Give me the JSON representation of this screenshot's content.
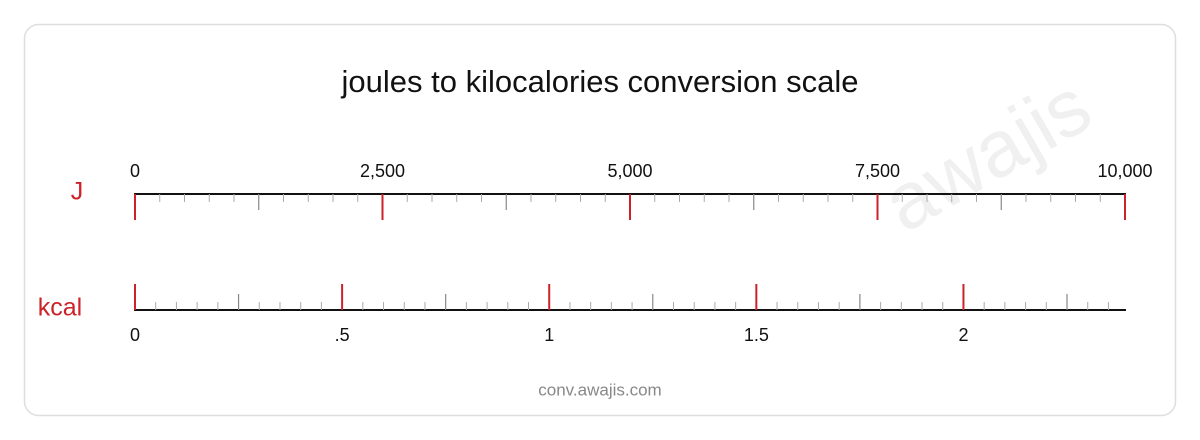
{
  "chart_data": {
    "type": "scale",
    "title": "joules to kilocalories conversion scale",
    "scales": [
      {
        "name": "J",
        "color": "#cc2229",
        "side": "top",
        "xlim": [
          0,
          10000
        ],
        "xticks": [
          0,
          {
            "value": 2500,
            "label": "2,500"
          },
          {
            "value": 5000,
            "label": "5,000"
          },
          {
            "value": 7500,
            "label": "7,500"
          },
          {
            "value": 10000,
            "label": "10,000"
          }
        ],
        "mid_ticks": [
          1250,
          3750,
          6250,
          8750
        ],
        "minor_ticks": [
          250,
          500,
          750,
          1000,
          1500,
          1750,
          2000,
          2250,
          2750,
          3000,
          3250,
          3500,
          4000,
          4250,
          4500,
          4750,
          5250,
          5500,
          5750,
          6000,
          6500,
          6750,
          7000,
          7250,
          7750,
          8000,
          8250,
          8500,
          9000,
          9250,
          9500,
          9750
        ]
      },
      {
        "name": "kcal",
        "color": "#cc2229",
        "side": "bottom",
        "xlim": [
          0,
          2.39
        ],
        "xticks": [
          0,
          {
            "value": 0.5,
            "label": ".5"
          },
          1,
          1.5,
          2
        ],
        "mid_ticks": [
          0.25,
          0.75,
          1.25,
          1.75,
          2.25
        ],
        "minor_ticks": [
          0.05,
          0.1,
          0.15,
          0.2,
          0.3,
          0.35,
          0.4,
          0.45,
          0.55,
          0.6,
          0.65,
          0.7,
          0.8,
          0.85,
          0.9,
          0.95,
          1.05,
          1.1,
          1.15,
          1.2,
          1.3,
          1.35,
          1.4,
          1.45,
          1.55,
          1.6,
          1.65,
          1.7,
          1.8,
          1.85,
          1.9,
          1.95,
          2.05,
          2.1,
          2.15,
          2.2,
          2.3,
          2.35
        ]
      }
    ],
    "footer": "conv.awajis.com",
    "watermark": "awajis"
  }
}
